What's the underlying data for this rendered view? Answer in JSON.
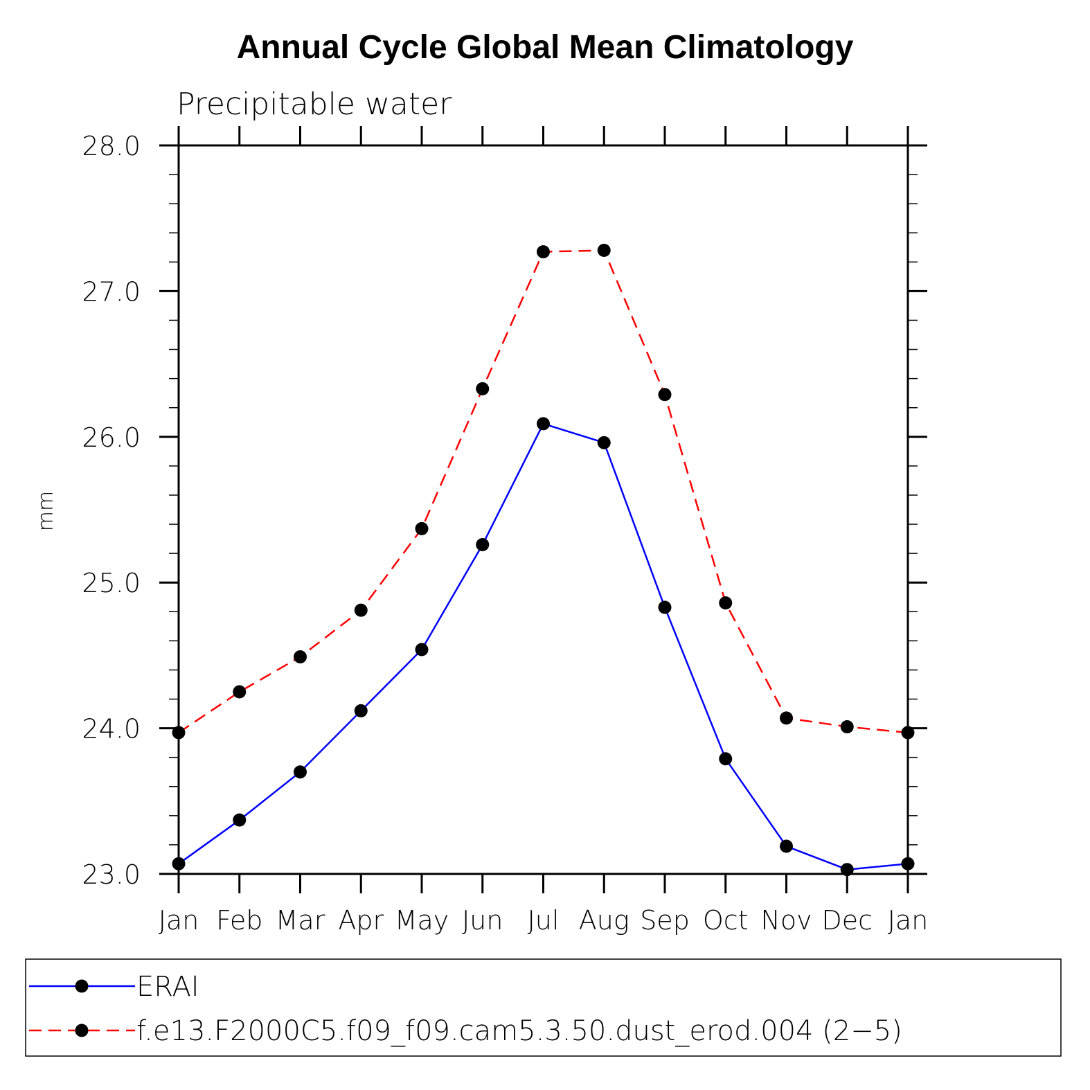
{
  "chart_data": {
    "type": "line",
    "title": "Annual Cycle Global Mean Climatology",
    "subtitle": "Precipitable water",
    "xlabel": "",
    "ylabel": "mm",
    "categories": [
      "Jan",
      "Feb",
      "Mar",
      "Apr",
      "May",
      "Jun",
      "Jul",
      "Aug",
      "Sep",
      "Oct",
      "Nov",
      "Dec",
      "Jan"
    ],
    "ylim": [
      23.0,
      28.0
    ],
    "yticks": [
      "23.0",
      "24.0",
      "25.0",
      "26.0",
      "27.0",
      "28.0"
    ],
    "series": [
      {
        "name": "ERAI",
        "color": "#0000ff",
        "dash": "solid",
        "values": [
          23.07,
          23.37,
          23.7,
          24.12,
          24.54,
          25.26,
          26.09,
          25.96,
          24.83,
          23.79,
          23.19,
          23.03,
          23.07
        ]
      },
      {
        "name": "f.e13.F2000C5.f09_f09.cam5.3.50.dust_erod.004 (2−5)",
        "color": "#ff0000",
        "dash": "dashed",
        "values": [
          23.97,
          24.25,
          24.49,
          24.81,
          25.37,
          26.33,
          27.27,
          27.28,
          26.29,
          24.86,
          24.07,
          24.01,
          23.97
        ]
      }
    ],
    "legend_position": "bottom"
  }
}
